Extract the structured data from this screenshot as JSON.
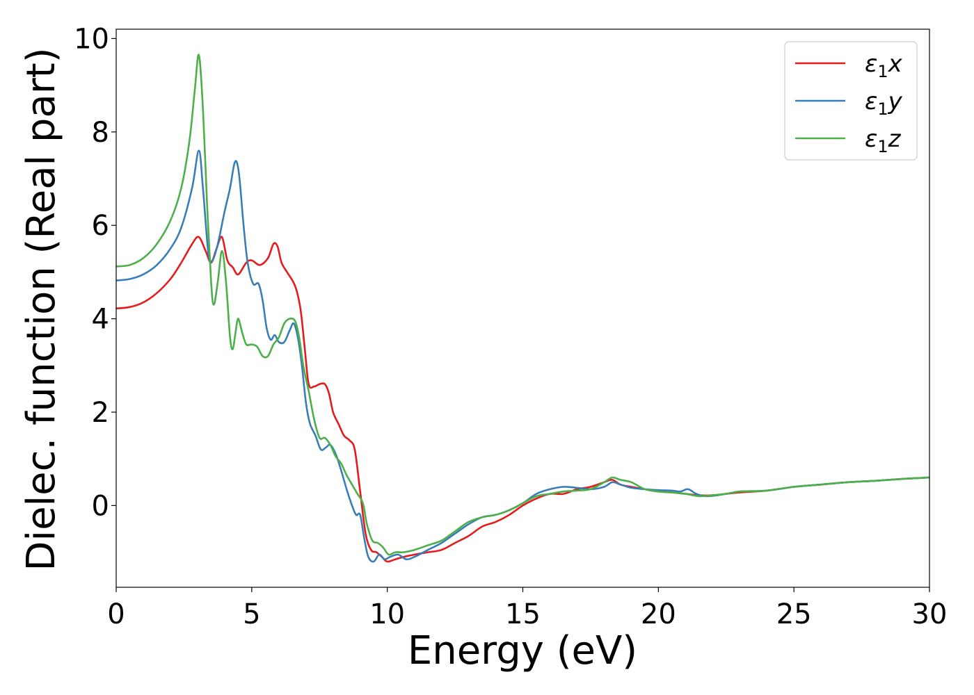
{
  "chart_data": {
    "type": "line",
    "xlabel": "Energy (eV)",
    "ylabel": "Dielec. function (Real part)",
    "xlim": [
      0,
      30
    ],
    "ylim": [
      -1.75,
      10.2
    ],
    "xticks": [
      0,
      5,
      10,
      15,
      20,
      25,
      30
    ],
    "yticks": [
      0,
      2,
      4,
      6,
      8,
      10
    ],
    "grid": false,
    "legend_position": "top-right",
    "series": [
      {
        "name": "ε₁x",
        "legend": {
          "base": "ε",
          "sub": "1",
          "var": "x"
        },
        "color": "#e41a1c",
        "x": [
          0,
          0.5,
          1.0,
          1.5,
          2.0,
          2.4,
          2.8,
          3.05,
          3.3,
          3.5,
          3.7,
          3.9,
          4.1,
          4.3,
          4.5,
          4.8,
          5.0,
          5.3,
          5.6,
          5.8,
          5.95,
          6.1,
          6.3,
          6.6,
          6.8,
          6.95,
          7.1,
          7.3,
          7.5,
          7.7,
          7.85,
          8.0,
          8.2,
          8.4,
          8.6,
          8.8,
          9.0,
          9.2,
          9.4,
          9.6,
          9.8,
          10.0,
          10.3,
          10.6,
          11.0,
          11.5,
          12.0,
          12.5,
          13.0,
          13.5,
          14.0,
          14.5,
          15.0,
          15.5,
          16.0,
          16.5,
          17.0,
          17.5,
          18.0,
          18.3,
          18.6,
          19.0,
          19.5,
          20.0,
          20.5,
          21.0,
          21.5,
          22.0,
          22.5,
          23.0,
          24.0,
          25.0,
          26.0,
          27.0,
          28.0,
          29.0,
          30.0
        ],
        "y": [
          4.22,
          4.25,
          4.35,
          4.55,
          4.85,
          5.2,
          5.6,
          5.75,
          5.45,
          5.2,
          5.5,
          5.75,
          5.25,
          5.1,
          4.95,
          5.2,
          5.25,
          5.15,
          5.3,
          5.6,
          5.55,
          5.2,
          5.0,
          4.7,
          4.2,
          3.4,
          2.6,
          2.55,
          2.6,
          2.6,
          2.4,
          2.0,
          1.75,
          1.5,
          1.4,
          1.2,
          0.3,
          -0.6,
          -0.95,
          -1.0,
          -1.1,
          -1.2,
          -1.15,
          -1.1,
          -1.05,
          -1.0,
          -0.95,
          -0.8,
          -0.65,
          -0.45,
          -0.35,
          -0.2,
          0.0,
          0.15,
          0.25,
          0.25,
          0.35,
          0.4,
          0.5,
          0.55,
          0.45,
          0.4,
          0.35,
          0.3,
          0.28,
          0.25,
          0.22,
          0.22,
          0.25,
          0.28,
          0.32,
          0.4,
          0.45,
          0.5,
          0.53,
          0.57,
          0.6
        ]
      },
      {
        "name": "ε₁y",
        "legend": {
          "base": "ε",
          "sub": "1",
          "var": "y"
        },
        "color": "#377eb8",
        "x": [
          0,
          0.5,
          1.0,
          1.5,
          2.0,
          2.4,
          2.8,
          3.05,
          3.2,
          3.4,
          3.55,
          3.75,
          4.0,
          4.2,
          4.35,
          4.45,
          4.55,
          4.7,
          4.85,
          5.05,
          5.25,
          5.4,
          5.55,
          5.7,
          5.85,
          6.0,
          6.2,
          6.4,
          6.55,
          6.7,
          6.85,
          7.0,
          7.15,
          7.35,
          7.55,
          7.75,
          7.9,
          8.1,
          8.3,
          8.5,
          8.7,
          8.85,
          9.0,
          9.15,
          9.3,
          9.5,
          9.7,
          9.9,
          10.1,
          10.4,
          10.7,
          11.0,
          11.5,
          12.0,
          12.5,
          13.0,
          13.5,
          14.0,
          14.5,
          15.0,
          15.5,
          16.0,
          16.5,
          17.0,
          17.5,
          18.0,
          18.3,
          18.6,
          19.0,
          19.5,
          20.0,
          20.5,
          20.8,
          21.1,
          21.4,
          21.8,
          22.5,
          23.0,
          24.0,
          25.0,
          26.0,
          27.0,
          28.0,
          29.0,
          30.0
        ],
        "y": [
          4.82,
          4.85,
          4.95,
          5.15,
          5.5,
          5.95,
          6.8,
          7.6,
          6.8,
          5.4,
          5.25,
          5.6,
          6.3,
          6.8,
          7.3,
          7.35,
          7.0,
          6.0,
          5.2,
          4.75,
          4.75,
          4.4,
          3.8,
          3.55,
          3.65,
          3.5,
          3.5,
          3.75,
          3.9,
          3.6,
          3.0,
          2.2,
          1.75,
          1.5,
          1.2,
          1.25,
          1.3,
          1.1,
          0.75,
          0.35,
          0.0,
          -0.2,
          -0.2,
          -0.7,
          -1.1,
          -1.2,
          -1.05,
          -1.15,
          -1.1,
          -1.05,
          -1.15,
          -1.1,
          -0.95,
          -0.8,
          -0.6,
          -0.4,
          -0.25,
          -0.2,
          -0.1,
          0.05,
          0.25,
          0.35,
          0.4,
          0.38,
          0.35,
          0.4,
          0.5,
          0.45,
          0.38,
          0.35,
          0.33,
          0.32,
          0.3,
          0.35,
          0.25,
          0.2,
          0.25,
          0.3,
          0.32,
          0.4,
          0.45,
          0.5,
          0.53,
          0.57,
          0.6
        ]
      },
      {
        "name": "ε₁z",
        "legend": {
          "base": "ε",
          "sub": "1",
          "var": "z"
        },
        "color": "#4daf4a",
        "x": [
          0,
          0.5,
          1.0,
          1.5,
          2.0,
          2.4,
          2.7,
          2.9,
          3.05,
          3.2,
          3.35,
          3.5,
          3.6,
          3.75,
          3.9,
          4.05,
          4.2,
          4.3,
          4.4,
          4.5,
          4.65,
          4.8,
          5.0,
          5.2,
          5.4,
          5.6,
          5.8,
          6.0,
          6.2,
          6.4,
          6.6,
          6.75,
          6.9,
          7.1,
          7.3,
          7.5,
          7.7,
          7.9,
          8.1,
          8.3,
          8.5,
          8.7,
          8.9,
          9.1,
          9.25,
          9.45,
          9.65,
          9.85,
          10.05,
          10.3,
          10.6,
          11.0,
          11.5,
          12.0,
          12.5,
          13.0,
          13.5,
          14.0,
          14.5,
          15.0,
          15.5,
          16.0,
          16.5,
          17.0,
          17.5,
          18.0,
          18.3,
          18.6,
          19.0,
          19.5,
          20.0,
          20.5,
          21.0,
          21.5,
          22.0,
          22.5,
          23.0,
          24.0,
          25.0,
          26.0,
          27.0,
          28.0,
          29.0,
          30.0
        ],
        "y": [
          5.12,
          5.15,
          5.3,
          5.6,
          6.1,
          6.8,
          7.8,
          8.9,
          9.65,
          8.5,
          6.5,
          4.8,
          4.3,
          4.8,
          5.45,
          4.8,
          3.6,
          3.35,
          3.7,
          4.0,
          3.7,
          3.45,
          3.45,
          3.4,
          3.2,
          3.2,
          3.45,
          3.6,
          3.9,
          4.0,
          3.95,
          3.6,
          3.0,
          2.45,
          1.85,
          1.45,
          1.45,
          1.3,
          1.05,
          0.9,
          0.65,
          0.45,
          0.25,
          0.05,
          -0.4,
          -0.75,
          -0.8,
          -0.9,
          -1.05,
          -1.0,
          -1.0,
          -0.95,
          -0.85,
          -0.75,
          -0.55,
          -0.35,
          -0.25,
          -0.2,
          -0.1,
          0.05,
          0.2,
          0.25,
          0.3,
          0.32,
          0.35,
          0.5,
          0.6,
          0.55,
          0.5,
          0.35,
          0.3,
          0.28,
          0.25,
          0.2,
          0.22,
          0.25,
          0.3,
          0.32,
          0.4,
          0.45,
          0.5,
          0.53,
          0.57,
          0.6
        ]
      }
    ]
  }
}
